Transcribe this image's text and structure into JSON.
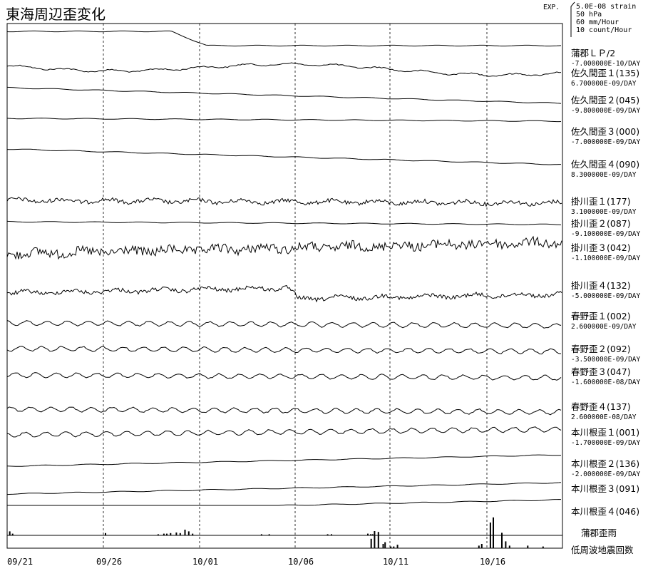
{
  "chart_data": {
    "type": "line",
    "title": "東海周辺歪変化",
    "scale_prefix": "EXP.",
    "scale_legend": [
      "5.0E-08 strain",
      "50 hPa",
      "60 mm/Hour",
      "10 count/Hour"
    ],
    "x_ticks": [
      "09/21",
      "09/26",
      "10/01",
      "10/06",
      "10/11",
      "10/16"
    ],
    "grid": "vertical dashed lines at each 5-day tick",
    "series": [
      {
        "name": "蒲郡ＬＰ/2",
        "rate": "-7.000000E-10/DAY",
        "style": "smooth",
        "shape": "step-down"
      },
      {
        "name": "佐久間歪１(135)",
        "rate": "6.700000E-09/DAY",
        "style": "medium",
        "shape": "wavy"
      },
      {
        "name": "佐久間歪２(045)",
        "rate": "-9.800000E-09/DAY",
        "style": "smooth",
        "shape": "decline"
      },
      {
        "name": "佐久間歪３(000)",
        "rate": "-7.000000E-09/DAY",
        "style": "smooth",
        "shape": "flat"
      },
      {
        "name": "佐久間歪４(090)",
        "rate": "8.300000E-09/DAY",
        "style": "smooth",
        "shape": "decline"
      },
      {
        "name": "掛川歪１(177)",
        "rate": "3.100000E-09/DAY",
        "style": "noisy",
        "shape": "flat"
      },
      {
        "name": "掛川歪２(087)",
        "rate": "-9.100000E-09/DAY",
        "style": "smooth",
        "shape": "flat"
      },
      {
        "name": "掛川歪３(042)",
        "rate": "-1.100000E-09/DAY",
        "style": "very-noisy",
        "shape": "rise"
      },
      {
        "name": "掛川歪４(132)",
        "rate": "-5.000000E-09/DAY",
        "style": "noisy",
        "shape": "jump-down"
      },
      {
        "name": "春野歪１(002)",
        "rate": "2.600000E-09/DAY",
        "style": "wavy",
        "shape": "flat"
      },
      {
        "name": "春野歪２(092)",
        "rate": "-3.500000E-09/DAY",
        "style": "wavy",
        "shape": "flat"
      },
      {
        "name": "春野歪３(047)",
        "rate": "-1.600000E-08/DAY",
        "style": "wavy",
        "shape": "flat"
      },
      {
        "name": "春野歪４(137)",
        "rate": "2.600000E-08/DAY",
        "style": "wavy",
        "shape": "flat"
      },
      {
        "name": "本川根歪１(001)",
        "rate": "-1.700000E-09/DAY",
        "style": "wavy",
        "shape": "slight-rise"
      },
      {
        "name": "本川根歪２(136)",
        "rate": "-2.000000E-09/DAY",
        "style": "smooth",
        "shape": "rise"
      },
      {
        "name": "本川根歪３(091)",
        "rate": "",
        "style": "smooth",
        "shape": "rise"
      },
      {
        "name": "本川根歪４(046)",
        "rate": "",
        "style": "smooth",
        "shape": "rise"
      }
    ],
    "bar_series": [
      {
        "name": "蒲郡歪雨",
        "bars": [
          [
            0.2,
            0.7
          ],
          [
            0.5,
            0.3
          ],
          [
            10.2,
            0.4
          ],
          [
            15.7,
            0.2
          ],
          [
            16.3,
            0.3
          ],
          [
            16.6,
            0.3
          ],
          [
            17.0,
            0.4
          ],
          [
            17.6,
            0.5
          ],
          [
            18.0,
            0.4
          ],
          [
            18.5,
            1.0
          ],
          [
            18.9,
            0.7
          ],
          [
            19.3,
            0.3
          ],
          [
            26.5,
            0.2
          ],
          [
            27.3,
            0.2
          ],
          [
            33.4,
            0.2
          ],
          [
            33.8,
            0.2
          ],
          [
            37.6,
            0.3
          ],
          [
            37.9,
            0.2
          ],
          [
            38.1,
            0.2
          ]
        ]
      },
      {
        "name": "低周波地震回数",
        "bars": [
          [
            37.95,
            1.1
          ],
          [
            38.3,
            2.0
          ],
          [
            38.7,
            1.9
          ],
          [
            39.2,
            0.5
          ],
          [
            39.4,
            0.7
          ],
          [
            40.0,
            0.2
          ],
          [
            40.3,
            0.2
          ],
          [
            40.7,
            0.4
          ],
          [
            49.2,
            0.3
          ],
          [
            49.5,
            0.5
          ],
          [
            50.4,
            3.0
          ],
          [
            50.7,
            3.6
          ],
          [
            51.6,
            1.8
          ],
          [
            52.0,
            0.8
          ],
          [
            52.4,
            0.3
          ],
          [
            54.3,
            0.3
          ],
          [
            55.9,
            0.2
          ]
        ]
      }
    ]
  }
}
